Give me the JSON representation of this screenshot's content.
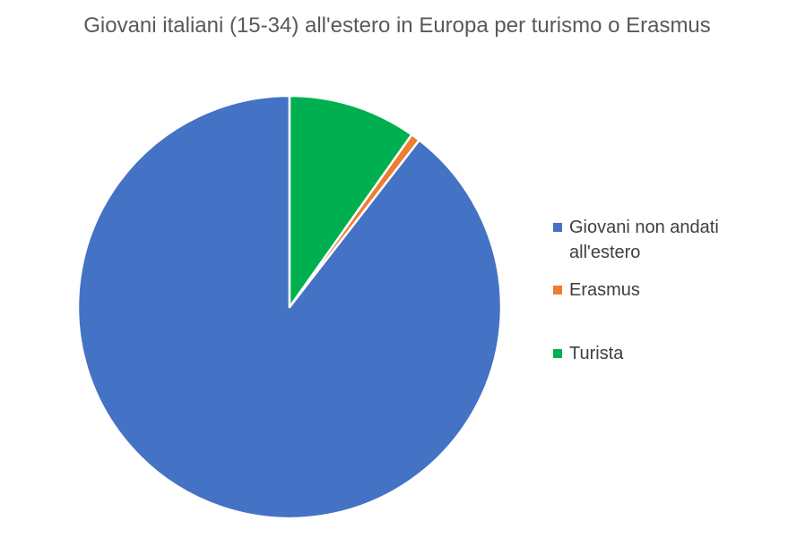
{
  "chart_data": {
    "type": "pie",
    "title": "Giovani italiani (15-34) all'estero in Europa per turismo o Erasmus",
    "categories": [
      "Giovani non andati all'estero",
      "Erasmus",
      "Turista"
    ],
    "values": [
      89.5,
      0.7,
      9.8
    ],
    "colors": [
      "#4472C4",
      "#ED7D31",
      "#00B050"
    ],
    "start_angle_deg": 0,
    "direction": "counterclockwise",
    "legend": "right",
    "slice_border_color": "#ffffff"
  }
}
